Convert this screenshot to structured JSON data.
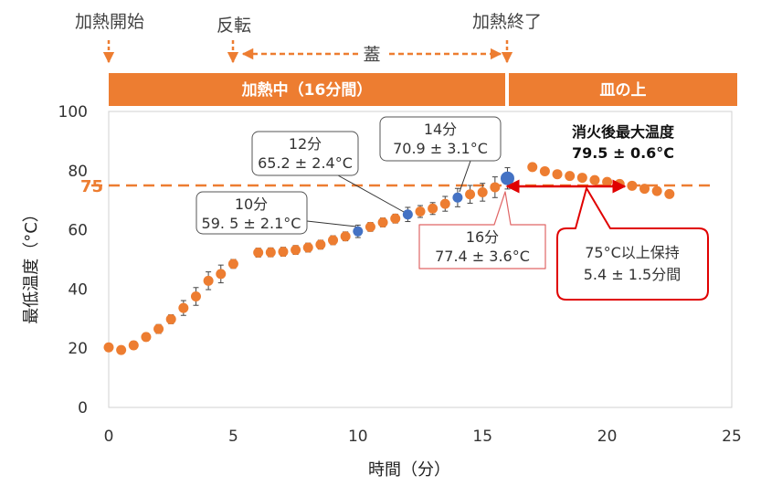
{
  "chart_data": {
    "type": "scatter",
    "xlabel": "時間（分）",
    "ylabel": "最低温度（°C）",
    "xlim": [
      0,
      25
    ],
    "ylim": [
      0,
      100
    ],
    "x_ticks": [
      "0",
      "5",
      "10",
      "15",
      "20",
      "25"
    ],
    "y_ticks": [
      "0",
      "20",
      "40",
      "60",
      "80",
      "100"
    ],
    "grid": false,
    "threshold": {
      "value": 75,
      "label": "75",
      "color": "#ED7D31"
    },
    "series": [
      {
        "color": "#ED7D31",
        "error_bars": true,
        "points": [
          {
            "x": 0,
            "y": 20.3,
            "err": 1.0
          },
          {
            "x": 0.5,
            "y": 19.4,
            "err": 1.2
          },
          {
            "x": 1,
            "y": 21.0,
            "err": 1.3
          },
          {
            "x": 1.5,
            "y": 23.8,
            "err": 1.3
          },
          {
            "x": 2,
            "y": 26.5,
            "err": 1.5
          },
          {
            "x": 2.5,
            "y": 29.8,
            "err": 1.5
          },
          {
            "x": 3,
            "y": 33.6,
            "err": 2.5
          },
          {
            "x": 3.5,
            "y": 37.5,
            "err": 3.0
          },
          {
            "x": 4,
            "y": 42.8,
            "err": 3.0
          },
          {
            "x": 4.5,
            "y": 45.1,
            "err": 3.0
          },
          {
            "x": 5,
            "y": 48.5,
            "err": 1.5
          },
          {
            "x": 6,
            "y": 52.3,
            "err": 1.5
          },
          {
            "x": 6.5,
            "y": 52.4,
            "err": 1.5
          },
          {
            "x": 7,
            "y": 52.6,
            "err": 1.5
          },
          {
            "x": 7.5,
            "y": 53.2,
            "err": 1.5
          },
          {
            "x": 8,
            "y": 54.0,
            "err": 1.5
          },
          {
            "x": 8.5,
            "y": 55.0,
            "err": 1.5
          },
          {
            "x": 9,
            "y": 56.5,
            "err": 1.5
          },
          {
            "x": 9.5,
            "y": 57.8,
            "err": 1.5
          },
          {
            "x": 10.5,
            "y": 61.0,
            "err": 1.5
          },
          {
            "x": 11,
            "y": 62.5,
            "err": 1.5
          },
          {
            "x": 11.5,
            "y": 63.8,
            "err": 1.5
          },
          {
            "x": 12.5,
            "y": 66.2,
            "err": 2.0
          },
          {
            "x": 13,
            "y": 67.2,
            "err": 2.0
          },
          {
            "x": 13.5,
            "y": 68.8,
            "err": 2.5
          },
          {
            "x": 14.5,
            "y": 72.0,
            "err": 3.0
          },
          {
            "x": 15,
            "y": 72.7,
            "err": 3.0
          },
          {
            "x": 15.5,
            "y": 74.4,
            "err": 3.5
          },
          {
            "x": 17,
            "y": 81.2,
            "err": 0
          },
          {
            "x": 17.5,
            "y": 79.8,
            "err": 0
          },
          {
            "x": 18,
            "y": 78.8,
            "err": 0
          },
          {
            "x": 18.5,
            "y": 78.2,
            "err": 0
          },
          {
            "x": 19,
            "y": 77.6,
            "err": 0
          },
          {
            "x": 19.5,
            "y": 76.8,
            "err": 0
          },
          {
            "x": 20,
            "y": 76.2,
            "err": 0
          },
          {
            "x": 20.5,
            "y": 75.5,
            "err": 0
          },
          {
            "x": 21,
            "y": 74.9,
            "err": 0
          },
          {
            "x": 21.5,
            "y": 73.9,
            "err": 0
          },
          {
            "x": 22,
            "y": 73.1,
            "err": 0
          },
          {
            "x": 22.5,
            "y": 72.1,
            "err": 0
          }
        ]
      },
      {
        "color": "#4472C4",
        "error_bars": true,
        "points": [
          {
            "x": 10,
            "y": 59.5,
            "err": 2.1
          },
          {
            "x": 12,
            "y": 65.2,
            "err": 2.4
          },
          {
            "x": 14,
            "y": 70.9,
            "err": 3.1
          },
          {
            "x": 16,
            "y": 77.4,
            "err": 3.6
          }
        ]
      }
    ],
    "phases": [
      {
        "label": "加熱開始",
        "x": 0
      },
      {
        "label": "反転",
        "x": 5
      },
      {
        "label": "加熱終了",
        "x": 16
      }
    ],
    "lid_label": "蓋",
    "banners": [
      {
        "label": "加熱中（16分間）",
        "x0": 0,
        "x1": 16
      },
      {
        "label": "皿の上",
        "x0": 16,
        "x1": 25
      }
    ],
    "annotations": {
      "a10": {
        "line1": "10分",
        "line2": "59. 5 ± 2.1°C"
      },
      "a12": {
        "line1": "12分",
        "line2": "65.2 ± 2.4°C"
      },
      "a14": {
        "line1": "14分",
        "line2": "70.9 ± 3.1°C"
      },
      "a16": {
        "line1": "16分",
        "line2": "77.4 ± 3.6°C"
      },
      "maxTemp": {
        "line1": "消火後最大温度",
        "line2": "79.5 ± 0.6°C"
      },
      "hold": {
        "line1": "75°C以上保持",
        "line2": "5.4 ± 1.5分間"
      }
    },
    "colors": {
      "orange": "#ED7D31",
      "blue": "#4472C4",
      "red": "#E00000",
      "dark_orange": "#C55A11"
    }
  }
}
